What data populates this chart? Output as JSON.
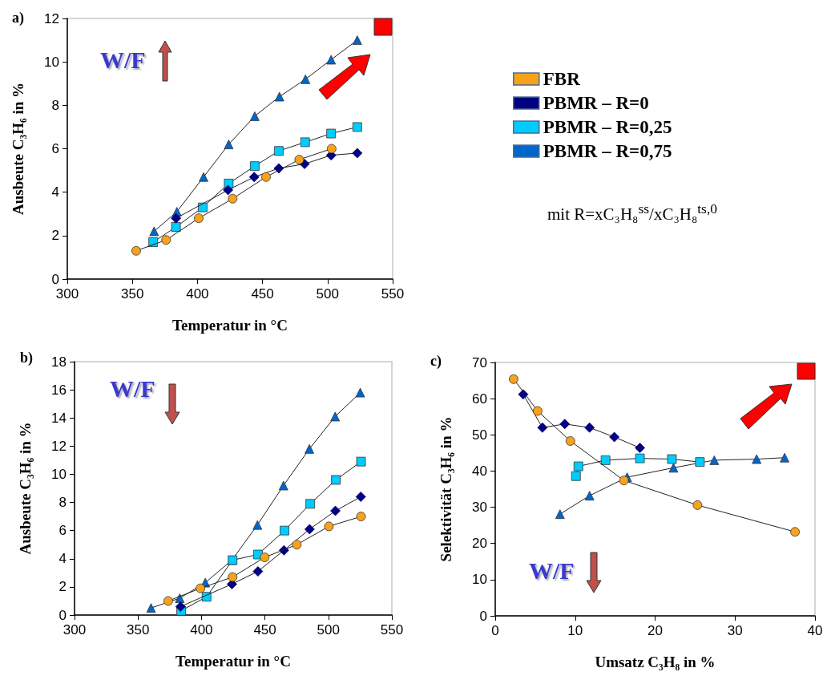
{
  "chart_data": [
    {
      "type": "line",
      "title": "a)",
      "xlabel": "Temperatur in °C",
      "ylabel": "Ausbeute C₃H₆ in %",
      "xlim": [
        300,
        550
      ],
      "xticks": [
        300,
        350,
        400,
        450,
        500,
        550
      ],
      "ylim": [
        0,
        12
      ],
      "yticks": [
        0,
        2,
        4,
        6,
        8,
        10,
        12
      ],
      "grid": false,
      "legend": "right",
      "annotations": [
        "W/F",
        "mit R=xC₃H₈$^{ss}$/xC₃H₈$^{ts,0}$"
      ],
      "series": [
        {
          "name": "FBR",
          "color": "#f7a21b",
          "marker": "circle",
          "x": [
            352.9,
            375.9,
            401,
            427,
            452.7,
            478.2,
            503.1
          ],
          "values": [
            1.3,
            1.8,
            2.8,
            3.7,
            4.7,
            5.5,
            6.0
          ]
        },
        {
          "name": "PBMR – R=0",
          "color": "#000080",
          "marker": "diamond",
          "x": [
            383.5,
            423.5,
            443.6,
            462.5,
            482.3,
            502.7,
            522.8
          ],
          "values": [
            2.8,
            4.1,
            4.7,
            5.1,
            5.3,
            5.7,
            5.8
          ]
        },
        {
          "name": "PBMR – R=0,25",
          "color": "#00ccff",
          "marker": "square",
          "x": [
            366,
            383.5,
            404,
            424,
            444,
            462.5,
            482.7,
            502.7,
            522.8
          ],
          "values": [
            1.7,
            2.4,
            3.3,
            4.4,
            5.2,
            5.9,
            6.3,
            6.7,
            7.0
          ]
        },
        {
          "name": "PBMR – R=0,75",
          "color": "#0066cc",
          "marker": "triangle",
          "x": [
            366.7,
            384.2,
            404.7,
            424,
            444,
            463,
            483,
            502.7,
            522.8
          ],
          "values": [
            2.2,
            3.1,
            4.7,
            6.2,
            7.5,
            8.4,
            9.2,
            10.1,
            11.0
          ]
        }
      ]
    },
    {
      "type": "line",
      "title": "b)",
      "xlabel": "Temperatur in °C",
      "ylabel": "Ausbeute C₃H₆ in %",
      "xlim": [
        300,
        550
      ],
      "xticks": [
        300,
        350,
        400,
        450,
        500,
        550
      ],
      "ylim": [
        0,
        18
      ],
      "yticks": [
        0,
        2,
        4,
        6,
        8,
        10,
        12,
        14,
        16,
        18
      ],
      "grid": false,
      "annotations": [
        "W/F"
      ],
      "series": [
        {
          "color": "#f7a21b",
          "marker": "circle",
          "x": [
            373.8,
            399.2,
            424.5,
            449.8,
            475.1,
            500.4,
            525.7
          ],
          "values": [
            1.0,
            1.9,
            2.7,
            4.1,
            5.0,
            6.3,
            7.0
          ]
        },
        {
          "color": "#000080",
          "marker": "diamond",
          "x": [
            383.5,
            424,
            444.5,
            465,
            485.2,
            505.5,
            525.5
          ],
          "values": [
            0.6,
            2.2,
            3.1,
            4.6,
            6.1,
            7.4,
            8.4
          ]
        },
        {
          "color": "#00ccff",
          "marker": "square",
          "x": [
            384,
            404,
            424.5,
            444.5,
            465.4,
            485.7,
            505.9,
            525.7
          ],
          "values": [
            0.3,
            1.3,
            3.9,
            4.3,
            6.0,
            7.9,
            9.6,
            10.9
          ]
        },
        {
          "color": "#0066cc",
          "marker": "triangle",
          "x": [
            360.3,
            382.9,
            403,
            424,
            444.1,
            464.6,
            485,
            505.3,
            525.1
          ],
          "values": [
            0.5,
            1.2,
            2.3,
            3.9,
            6.4,
            9.2,
            11.8,
            14.1,
            15.8
          ]
        }
      ]
    },
    {
      "type": "line",
      "title": "c)",
      "xlabel": "Umsatz C₃H₈ in %",
      "ylabel": "Selektivität C₃H₆ in %",
      "xlim": [
        0,
        40
      ],
      "xticks": [
        0,
        10,
        20,
        30,
        40
      ],
      "ylim": [
        0,
        70
      ],
      "yticks": [
        0,
        10,
        20,
        30,
        40,
        50,
        60,
        70
      ],
      "grid": false,
      "annotations": [
        "W/F"
      ],
      "series": [
        {
          "color": "#f7a21b",
          "marker": "circle",
          "x": [
            2.3,
            5.3,
            9.4,
            16.1,
            25.3,
            37.5
          ],
          "values": [
            65.4,
            56.6,
            48.3,
            37.4,
            30.6,
            23.2
          ]
        },
        {
          "color": "#000080",
          "marker": "diamond",
          "x": [
            3.5,
            5.9,
            8.7,
            11.8,
            14.9,
            18.1
          ],
          "values": [
            61.2,
            52.0,
            53.0,
            52.0,
            49.4,
            46.4
          ]
        },
        {
          "color": "#00ccff",
          "marker": "square",
          "x": [
            10.1,
            10.4,
            13.8,
            18.1,
            22.1,
            25.6
          ],
          "values": [
            38.6,
            41.3,
            43.0,
            43.5,
            43.3,
            42.5
          ]
        },
        {
          "color": "#0066cc",
          "marker": "triangle",
          "x": [
            8.1,
            11.8,
            16.5,
            22.3,
            27.4,
            32.7,
            36.2
          ],
          "values": [
            28.1,
            33.2,
            38.3,
            40.9,
            43.0,
            43.3,
            43.7
          ]
        }
      ]
    }
  ]
}
